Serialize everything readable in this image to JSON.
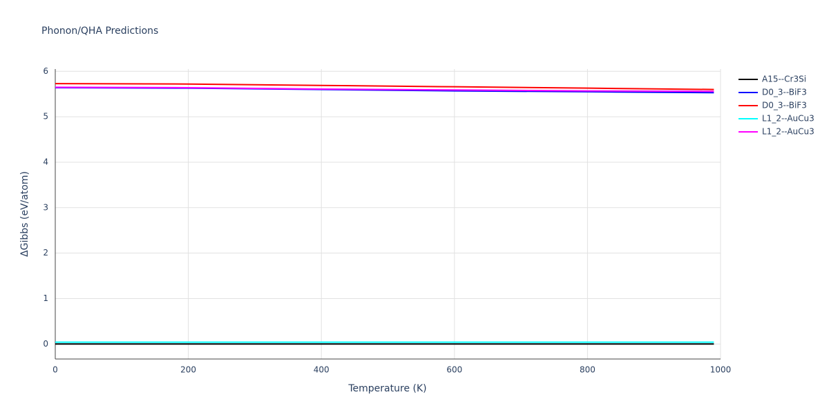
{
  "chart_data": {
    "type": "line",
    "title": "Phonon/QHA Predictions",
    "x_label": "Temperature (K)",
    "y_label": "ΔGibbs (eV/atom)",
    "x": [
      0,
      200,
      400,
      600,
      800,
      990
    ],
    "series": [
      {
        "name": "A15--Cr3Si",
        "color": "#000000",
        "values": [
          0,
          0,
          0,
          0,
          0,
          0
        ]
      },
      {
        "name": "D0_3--BiF3",
        "color": "#0000ff",
        "values": [
          5.64,
          5.63,
          5.6,
          5.57,
          5.55,
          5.53
        ]
      },
      {
        "name": "D0_3--BiF3",
        "color": "#ff0000",
        "values": [
          5.73,
          5.72,
          5.69,
          5.66,
          5.63,
          5.6
        ]
      },
      {
        "name": "L1_2--AuCu3",
        "color": "#00ffff",
        "values": [
          0.04,
          0.04,
          0.04,
          0.04,
          0.04,
          0.04
        ]
      },
      {
        "name": "L1_2--AuCu3",
        "color": "#ff00ff",
        "values": [
          5.65,
          5.64,
          5.61,
          5.59,
          5.57,
          5.56
        ]
      }
    ],
    "xlim": [
      0,
      1000
    ],
    "xticks": [
      0,
      200,
      400,
      600,
      800,
      1000
    ],
    "ylim": [
      -0.33,
      6.05
    ],
    "yticks": [
      0,
      1,
      2,
      3,
      4,
      5,
      6
    ],
    "grid": true,
    "legend": "right"
  }
}
